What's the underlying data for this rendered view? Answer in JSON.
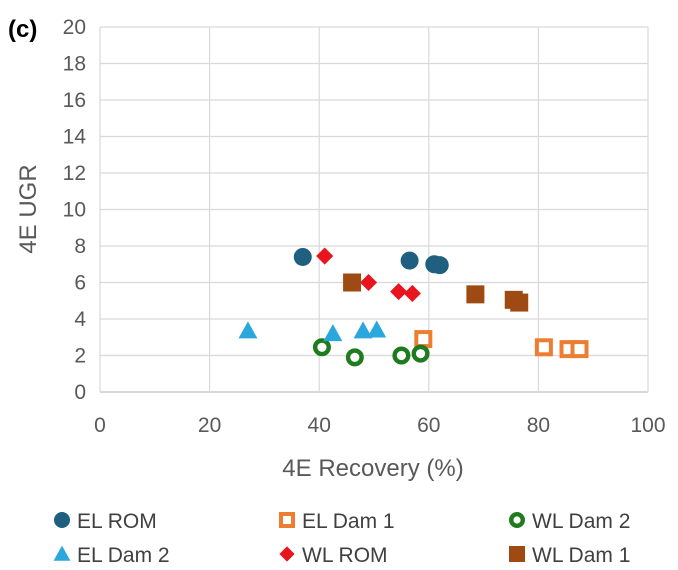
{
  "panel_label": "(c)",
  "chart_data": {
    "type": "scatter",
    "title": "",
    "xlabel": "4E Recovery (%)",
    "ylabel": "4E UGR",
    "xlim": [
      0,
      100
    ],
    "ylim": [
      0,
      20
    ],
    "x_ticks": [
      "0",
      "20",
      "40",
      "60",
      "80",
      "100"
    ],
    "y_ticks": [
      "0",
      "2",
      "4",
      "6",
      "8",
      "10",
      "12",
      "14",
      "16",
      "18",
      "20"
    ],
    "grid": true,
    "legend_position": "bottom",
    "series": [
      {
        "name": "EL ROM",
        "marker": "circle",
        "color": "#1F5F80",
        "points": [
          [
            37,
            7.4
          ],
          [
            56.5,
            7.2
          ],
          [
            61,
            7.0
          ],
          [
            62,
            6.95
          ]
        ]
      },
      {
        "name": "EL Dam 1",
        "marker": "square-open",
        "color": "#ED7D31",
        "points": [
          [
            59,
            2.9
          ],
          [
            81,
            2.45
          ],
          [
            85.5,
            2.35
          ],
          [
            87.5,
            2.35
          ]
        ]
      },
      {
        "name": "WL Dam 2",
        "marker": "circle-open",
        "color": "#1E7B1E",
        "points": [
          [
            40.5,
            2.45
          ],
          [
            46.5,
            1.9
          ],
          [
            55,
            2.0
          ],
          [
            58.5,
            2.1
          ]
        ]
      },
      {
        "name": "EL Dam 2",
        "marker": "triangle",
        "color": "#2AA7DC",
        "points": [
          [
            27,
            3.35
          ],
          [
            42.5,
            3.2
          ],
          [
            48,
            3.35
          ],
          [
            50.5,
            3.4
          ]
        ]
      },
      {
        "name": "WL ROM",
        "marker": "diamond",
        "color": "#E8141E",
        "points": [
          [
            41,
            7.45
          ],
          [
            49,
            6.0
          ],
          [
            54.5,
            5.5
          ],
          [
            57,
            5.4
          ]
        ]
      },
      {
        "name": "WL Dam 1",
        "marker": "square",
        "color": "#9E4A12",
        "points": [
          [
            46,
            6.0
          ],
          [
            68.5,
            5.35
          ],
          [
            75.5,
            5.05
          ],
          [
            76.5,
            4.9
          ]
        ]
      }
    ]
  }
}
